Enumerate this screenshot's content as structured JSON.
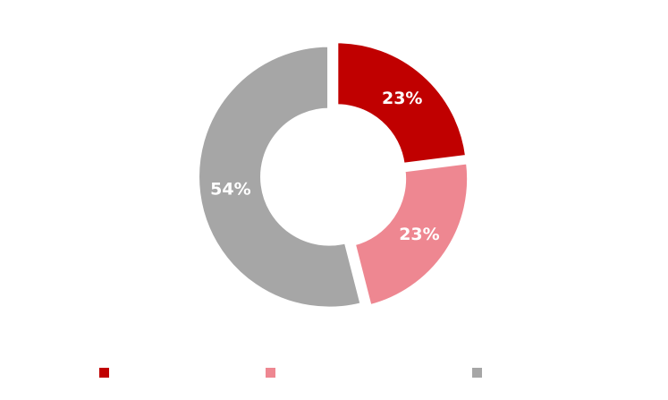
{
  "chart_data": {
    "type": "pie",
    "style": "donut",
    "title": "",
    "slices": [
      {
        "name": "",
        "value": 23,
        "label": "23%",
        "color": "#C00000"
      },
      {
        "name": "",
        "value": 23,
        "label": "23%",
        "color": "#EE8791"
      },
      {
        "name": "",
        "value": 54,
        "label": "54%",
        "color": "#A6A6A6"
      }
    ],
    "legend_position": "bottom"
  }
}
